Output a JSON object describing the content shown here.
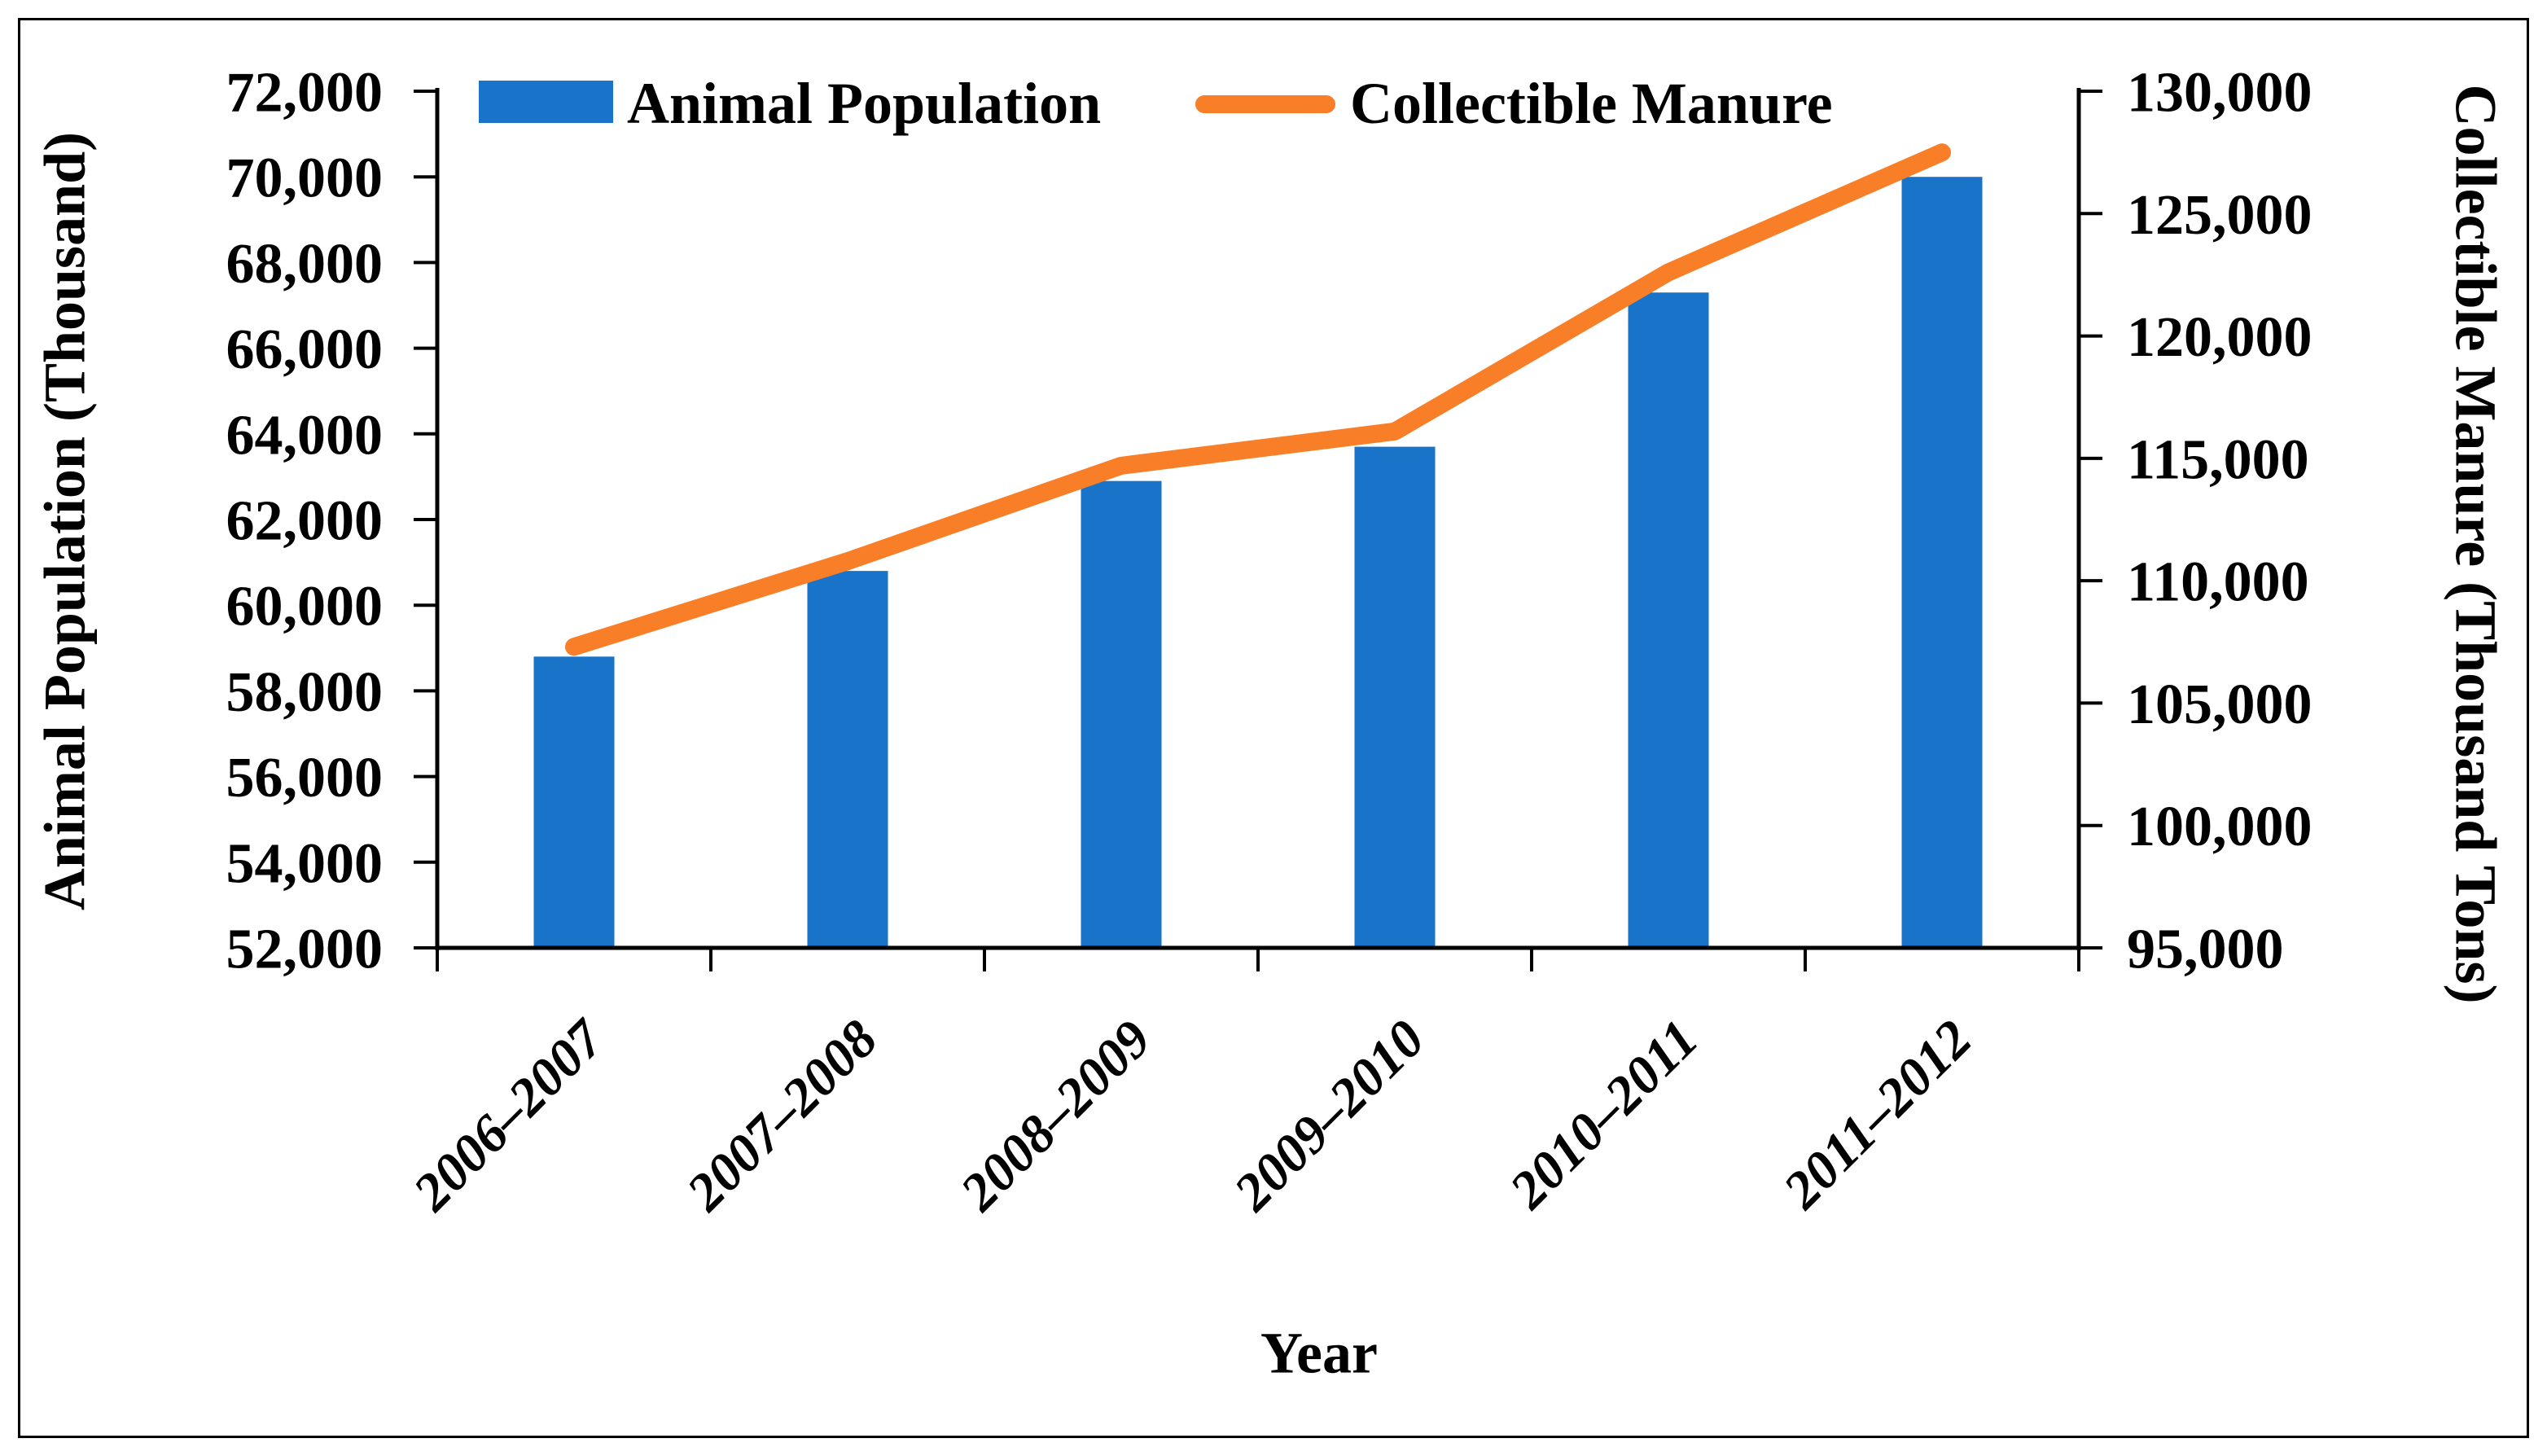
{
  "figure": {
    "background": "#FFFFFF",
    "border_color": "#000000"
  },
  "chart_data": {
    "type": "combo (bar + line), dual y-axes",
    "categories": [
      "2006–2007",
      "2007–2008",
      "2008–2009",
      "2009–2010",
      "2010–2011",
      "2011–2012"
    ],
    "series": [
      {
        "name": "Animal Population",
        "type": "bar",
        "axis": "left",
        "color": "#1973C8",
        "values": [
          58800,
          60800,
          62900,
          63700,
          67300,
          70000
        ]
      },
      {
        "name": "Collectible Manure",
        "type": "line",
        "axis": "right",
        "color": "#F87E27",
        "values": [
          107300,
          110800,
          114700,
          116100,
          122600,
          127500
        ]
      }
    ],
    "x_axis": {
      "label": "Year"
    },
    "left_axis": {
      "label": "Animal Population (Thousand)",
      "min": 52000,
      "max": 72000,
      "step": 2000
    },
    "right_axis": {
      "label": "Collectible Manure (Thousand Tons)",
      "min": 95000,
      "max": 130000,
      "step": 5000
    },
    "legend_position": "top",
    "grid": false,
    "axis_color": "#000000"
  }
}
